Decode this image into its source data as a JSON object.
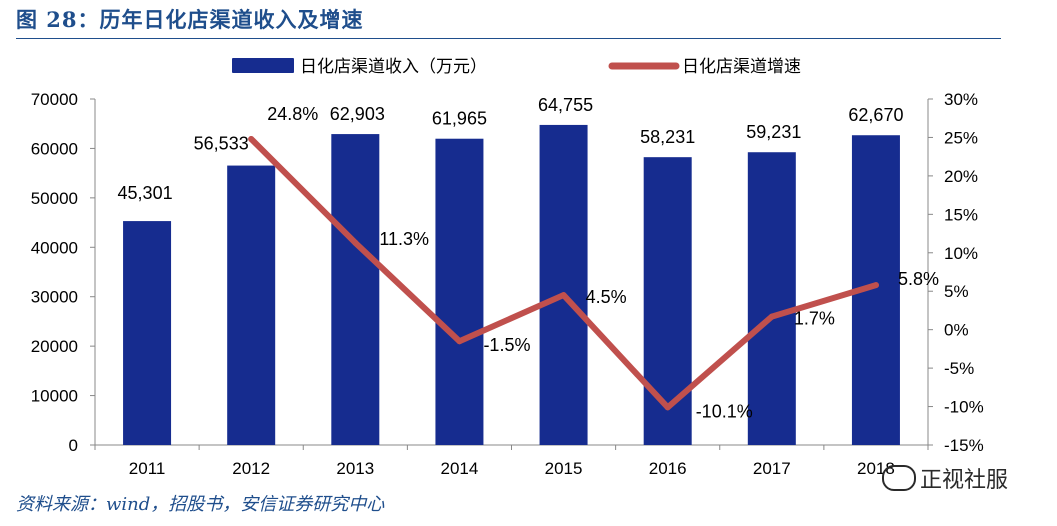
{
  "page": {
    "title": "图 28：历年日化店渠道收入及增速",
    "source": "资料来源：wind，招股书，安信证券研究中心",
    "watermark": "正视社服"
  },
  "colors": {
    "bar": "#162c8f",
    "line": "#c0504d",
    "title": "#1f4e8c",
    "axis": "#888888",
    "text": "#000000"
  },
  "chart_data": {
    "type": "bar",
    "title": "",
    "categories": [
      "2011",
      "2012",
      "2013",
      "2014",
      "2015",
      "2016",
      "2017",
      "2018"
    ],
    "series": [
      {
        "name": "日化店渠道收入（万元）",
        "type": "bar",
        "axis": "left",
        "values": [
          45301,
          56533,
          62903,
          61965,
          64755,
          58231,
          59231,
          62670
        ],
        "labels": [
          "45,301",
          "56,533",
          "62,903",
          "61,965",
          "64,755",
          "58,231",
          "59,231",
          "62,670"
        ]
      },
      {
        "name": "日化店渠道增速",
        "type": "line",
        "axis": "right",
        "values": [
          null,
          24.8,
          11.3,
          -1.5,
          4.5,
          -10.1,
          1.7,
          5.8
        ],
        "labels": [
          "",
          "24.8%",
          "11.3%",
          "-1.5%",
          "4.5%",
          "-10.1%",
          "1.7%",
          "5.8%"
        ]
      }
    ],
    "y_left": {
      "min": 0,
      "max": 70000,
      "ticks": [
        "0",
        "10000",
        "20000",
        "30000",
        "40000",
        "50000",
        "60000",
        "70000"
      ]
    },
    "y_right": {
      "min": -15,
      "max": 30,
      "ticks": [
        "-15%",
        "-10%",
        "-5%",
        "0%",
        "5%",
        "10%",
        "15%",
        "20%",
        "25%",
        "30%"
      ]
    },
    "legend": {
      "position": "top-center"
    },
    "grid": false
  }
}
